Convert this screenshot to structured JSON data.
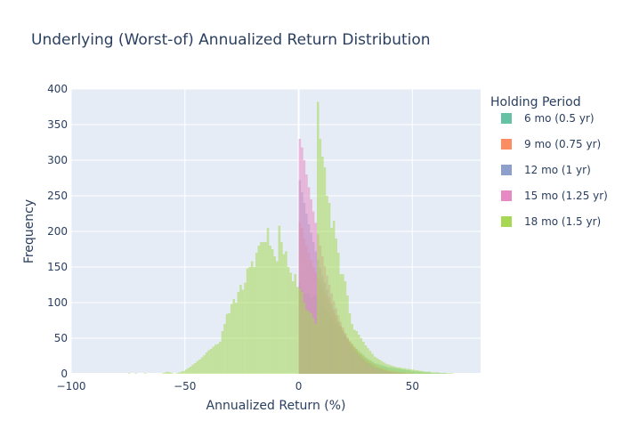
{
  "chart_data": {
    "type": "histogram",
    "title": "Underlying (Worst-of) Annualized Return Distribution",
    "xlabel": "Annualized Return (%)",
    "ylabel": "Frequency",
    "xlim": [
      -100,
      80
    ],
    "ylim": [
      0,
      400
    ],
    "x_ticks": [
      -100,
      -50,
      0,
      50
    ],
    "y_ticks": [
      0,
      50,
      100,
      150,
      200,
      250,
      300,
      350,
      400
    ],
    "barmode": "overlay",
    "bin_width": 1,
    "grid": true,
    "legend_title": "Holding Period",
    "legend_position": "right",
    "series": [
      {
        "name": "6 mo (0.5 yr)",
        "color": "#66c2a5",
        "bin_start": 0,
        "counts": [
          128,
          118,
          113,
          113,
          112,
          106,
          109,
          110,
          104,
          97,
          96,
          93,
          88,
          82,
          78,
          73,
          70,
          67,
          62,
          57,
          53,
          49,
          45,
          42,
          38,
          35,
          32,
          29,
          26,
          23,
          21,
          19,
          17,
          15,
          14,
          13,
          12,
          11,
          10,
          9,
          9,
          8,
          8,
          7,
          7,
          6,
          6,
          5,
          5,
          4,
          4,
          3,
          3,
          3,
          2,
          2,
          2,
          2,
          1,
          1,
          1,
          1,
          1,
          1,
          1
        ]
      },
      {
        "name": "9 mo (0.75 yr)",
        "color": "#fc8d62",
        "bin_start": 0,
        "counts": [
          213,
          205,
          190,
          180,
          170,
          160,
          150,
          142,
          135,
          128,
          120,
          113,
          106,
          99,
          92,
          85,
          79,
          73,
          67,
          61,
          56,
          51,
          46,
          42,
          38,
          34,
          30,
          27,
          24,
          21,
          18,
          16,
          14,
          12,
          10,
          9,
          8,
          7,
          6,
          5,
          4,
          4,
          3,
          3,
          2,
          2,
          2,
          1,
          1,
          1
        ]
      },
      {
        "name": "12 mo (1 yr)",
        "color": "#8da0cb",
        "bin_start": 0,
        "counts": [
          272,
          255,
          240,
          225,
          210,
          198,
          185,
          172,
          160,
          149,
          138,
          128,
          118,
          108,
          99,
          90,
          82,
          74,
          67,
          60,
          54,
          48,
          43,
          38,
          34,
          30,
          26,
          23,
          20,
          17,
          15,
          13,
          11,
          9,
          8,
          7,
          6,
          5,
          4,
          3,
          3,
          2,
          2,
          1,
          1,
          1
        ]
      },
      {
        "name": "15 mo (1.25 yr)",
        "color": "#e78ac3",
        "bin_start": 0,
        "counts": [
          330,
          318,
          300,
          280,
          262,
          245,
          228,
          212,
          196,
          180,
          165,
          151,
          138,
          125,
          113,
          102,
          92,
          82,
          73,
          65,
          57,
          50,
          44,
          38,
          33,
          28,
          24,
          20,
          17,
          14,
          12,
          10,
          8,
          7,
          6,
          5,
          4,
          3,
          3,
          2,
          2,
          1,
          1,
          1
        ]
      },
      {
        "name": "18 mo (1.5 yr)",
        "color": "#a6d854",
        "bin_start": -75,
        "counts": [
          1,
          0,
          0,
          1,
          0,
          0,
          0,
          1,
          0,
          0,
          0,
          0,
          0,
          0,
          0,
          1,
          2,
          3,
          2,
          1,
          0,
          1,
          2,
          3,
          4,
          6,
          8,
          10,
          13,
          15,
          18,
          20,
          23,
          26,
          30,
          33,
          35,
          38,
          41,
          42,
          45,
          60,
          70,
          84,
          85,
          98,
          105,
          100,
          115,
          125,
          118,
          128,
          148,
          150,
          158,
          150,
          170,
          180,
          185,
          185,
          185,
          205,
          180,
          175,
          165,
          158,
          208,
          185,
          168,
          172,
          150,
          142,
          130,
          140,
          122,
          120,
          115,
          100,
          90,
          88,
          85,
          78,
          70,
          382,
          330,
          305,
          290,
          250,
          240,
          205,
          215,
          190,
          170,
          140,
          140,
          130,
          110,
          85,
          70,
          62,
          60,
          55,
          50,
          45,
          40,
          36,
          32,
          28,
          24,
          22,
          20,
          18,
          16,
          14,
          13,
          12,
          11,
          10,
          9,
          9,
          8,
          8,
          7,
          7,
          6,
          6,
          5,
          5,
          4,
          4,
          3,
          3,
          3,
          2,
          2,
          2,
          2,
          1,
          1,
          1,
          1,
          1,
          1
        ]
      }
    ]
  }
}
